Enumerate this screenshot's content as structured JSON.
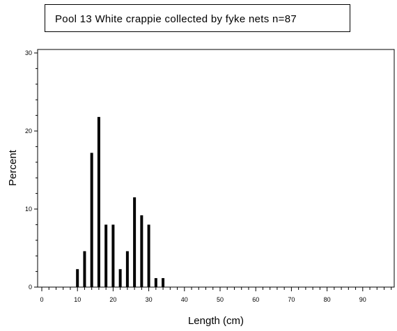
{
  "chart_data": {
    "type": "bar",
    "title": "Pool 13 White crappie collected by fyke nets   n=87",
    "xlabel": "Length (cm)",
    "ylabel": "Percent",
    "xlim": [
      0,
      98
    ],
    "ylim": [
      0,
      30
    ],
    "xticks": [
      0,
      10,
      20,
      30,
      40,
      50,
      60,
      70,
      80,
      90
    ],
    "yticks": [
      0,
      10,
      20,
      30
    ],
    "x": [
      10,
      12,
      14,
      16,
      18,
      20,
      22,
      24,
      26,
      28,
      30,
      32,
      34
    ],
    "values": [
      2.3,
      4.6,
      17.2,
      21.8,
      8.0,
      8.0,
      2.3,
      4.6,
      11.5,
      9.2,
      8.0,
      1.15,
      1.15
    ],
    "grid": false,
    "colors": {
      "bar": "#000000",
      "axis": "#000000"
    }
  }
}
